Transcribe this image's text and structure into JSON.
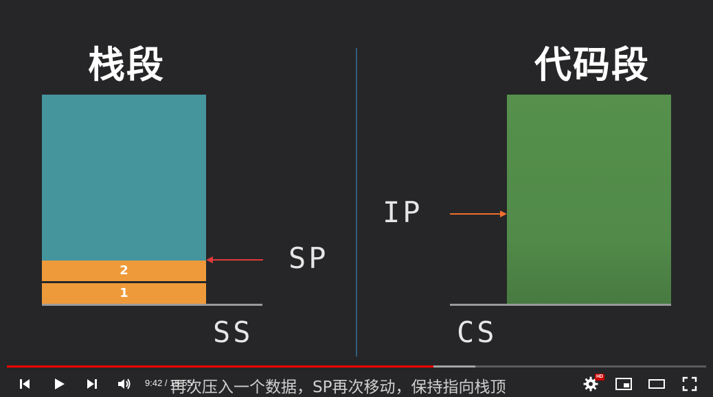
{
  "diagram": {
    "stack_title": "栈段",
    "code_title": "代码段",
    "stack_cells": [
      "2",
      "1"
    ],
    "sp_label": "SP",
    "ip_label": "IP",
    "ss_label": "SS",
    "cs_label": "CS"
  },
  "colors": {
    "stack_fill": "#45959d",
    "stack_cell_fill": "#ef9a3a",
    "code_fill": "#56904c",
    "sp_arrow": "#e03a3a",
    "ip_arrow": "#f07030",
    "divider": "#2f5f7a"
  },
  "player": {
    "subtitle": "再次压入一个数据，SP再次移动，保持指向栈顶",
    "time_display": "9:42 / 15:55",
    "progress_fraction": 0.61,
    "buffered_fraction": 0.67,
    "hd_badge": "HD",
    "icons": [
      "previous-icon",
      "play-icon",
      "next-icon",
      "volume-icon",
      "settings-icon",
      "miniplayer-icon",
      "theater-icon",
      "fullscreen-icon"
    ]
  }
}
